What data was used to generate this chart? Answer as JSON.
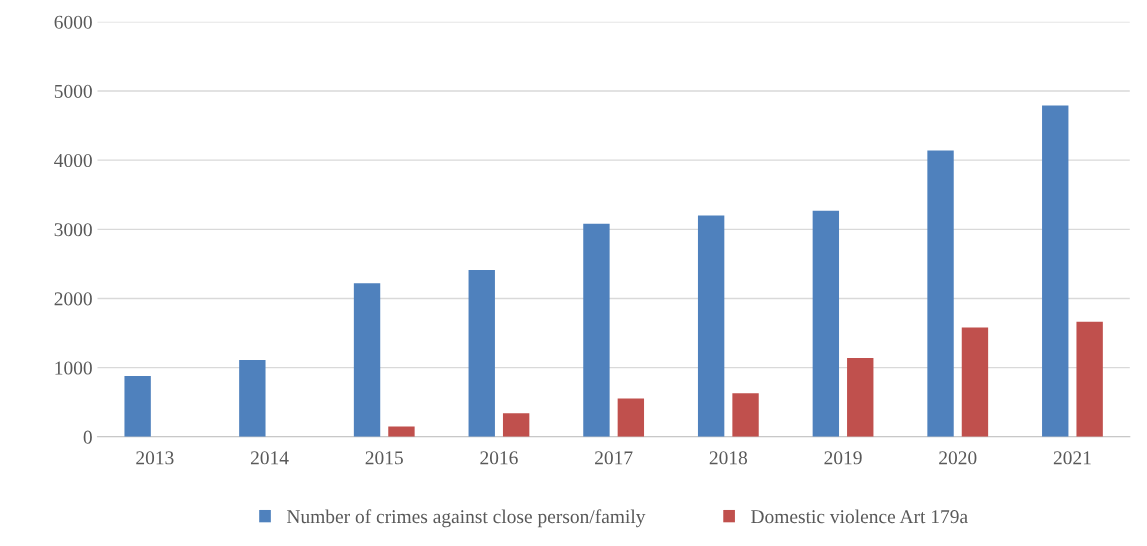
{
  "chart_data": {
    "type": "bar",
    "categories": [
      "2013",
      "2014",
      "2015",
      "2016",
      "2017",
      "2018",
      "2019",
      "2020",
      "2021"
    ],
    "series": [
      {
        "name": "Number of crimes against close person/family",
        "color": "#4f81bd",
        "values": [
          880,
          1110,
          2220,
          2410,
          3080,
          3200,
          3270,
          4140,
          4790
        ]
      },
      {
        "name": "Domestic violence Art 179a",
        "color": "#c0504d",
        "values": [
          null,
          null,
          150,
          340,
          555,
          630,
          1140,
          1580,
          1665
        ]
      }
    ],
    "ylim": [
      0,
      6000
    ],
    "yticks": [
      0,
      1000,
      2000,
      3000,
      4000,
      5000,
      6000
    ],
    "grid": "y",
    "legend": "bottom"
  }
}
